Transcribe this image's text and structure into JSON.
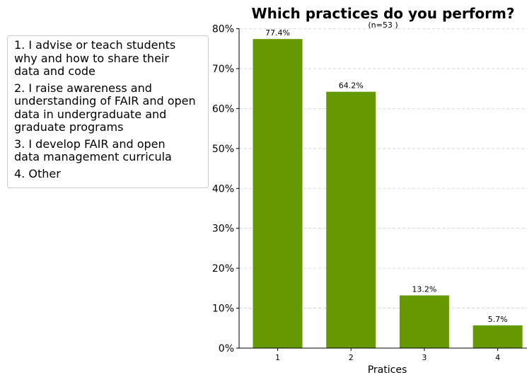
{
  "chart_data": {
    "type": "bar",
    "title": "Which practices do you perform?",
    "subtitle": "(n=53 )",
    "xlabel": "Pratices",
    "ylabel": "",
    "categories": [
      "1",
      "2",
      "3",
      "4"
    ],
    "values": [
      77.4,
      64.2,
      13.2,
      5.7
    ],
    "value_labels": [
      "77.4%",
      "64.2%",
      "13.2%",
      "5.7%"
    ],
    "ylim": [
      0,
      80
    ],
    "yticks": [
      0,
      10,
      20,
      30,
      40,
      50,
      60,
      70,
      80
    ],
    "ytick_labels": [
      "0%",
      "10%",
      "20%",
      "30%",
      "40%",
      "50%",
      "60%",
      "70%",
      "80%"
    ],
    "grid": true,
    "bar_color": "#669900",
    "legend_placement": "left",
    "legend": [
      "1. I advise or teach students\nwhy and how to share their\ndata and code",
      "2. I raise awareness and\nunderstanding of FAIR and open\ndata in undergraduate and\ngraduate programs",
      "3. I develop FAIR and open\ndata management curricula",
      "4. Other"
    ]
  }
}
